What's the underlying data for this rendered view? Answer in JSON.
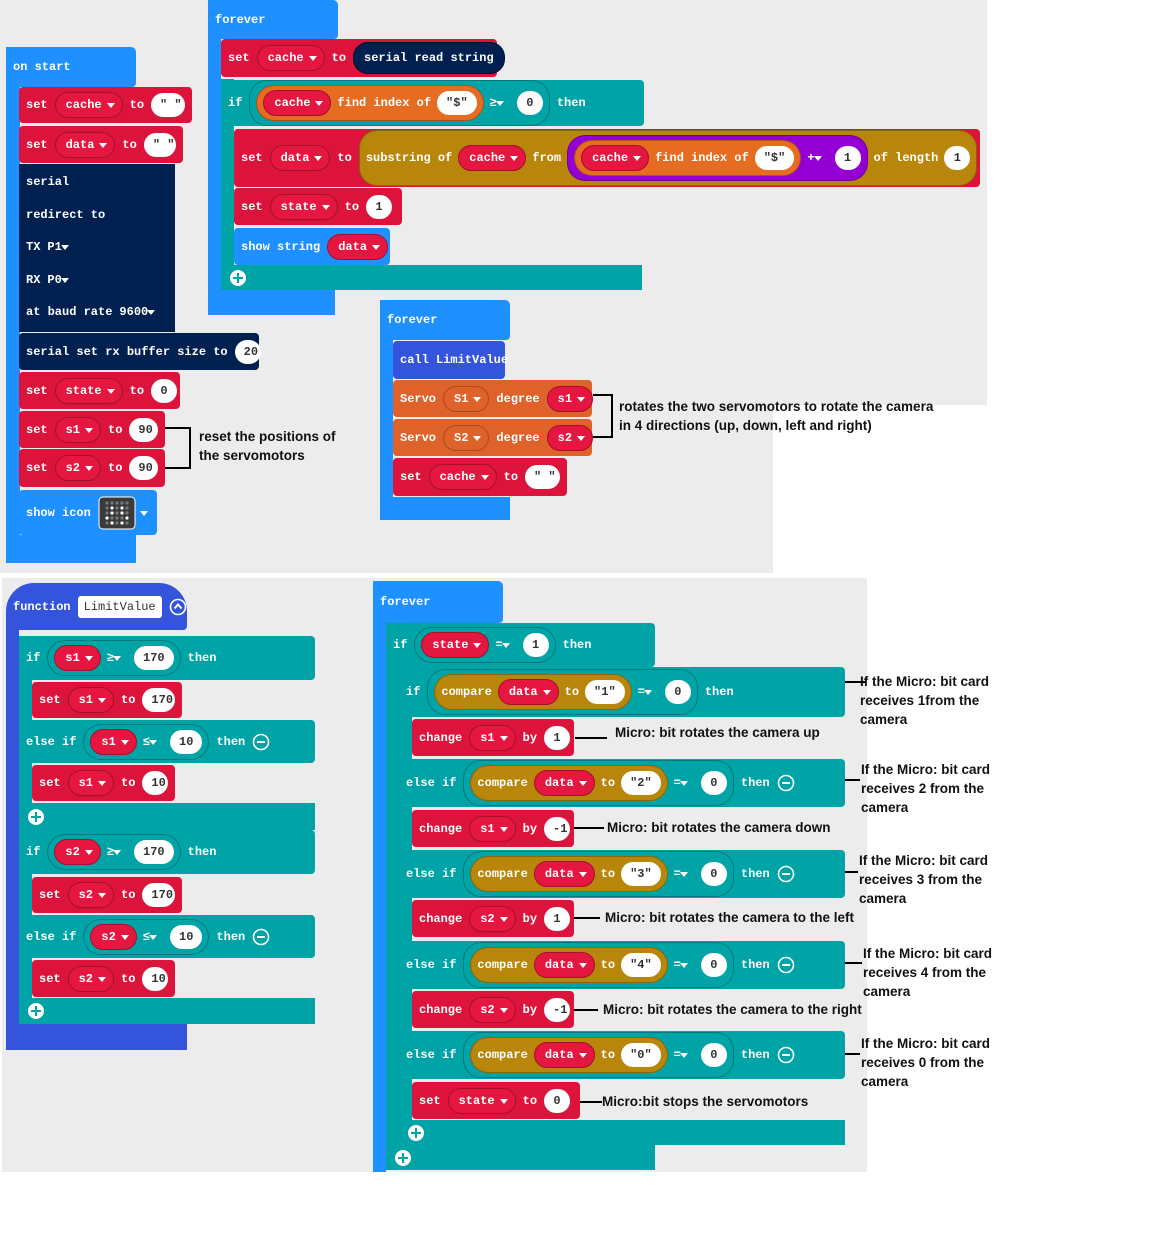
{
  "blocks": {
    "on_start": {
      "rows": [
        [
          "on start"
        ],
        [
          "set",
          "cache",
          "to",
          "\" \""
        ],
        [
          "set",
          "data",
          "to",
          "\" \""
        ],
        [
          "serial"
        ],
        [
          "redirect to"
        ],
        [
          "TX",
          "P1"
        ],
        [
          "RX",
          "P0"
        ],
        [
          "at baud rate",
          "9600"
        ],
        [
          "serial set rx buffer size to",
          "20"
        ],
        [
          "set",
          "state",
          "to",
          "0"
        ],
        [
          "set",
          "s1",
          "to",
          "90"
        ],
        [
          "set",
          "s2",
          "to",
          "90"
        ],
        [
          "show icon"
        ]
      ]
    },
    "forever_1": {
      "rows": [
        [
          "forever"
        ],
        [
          "set",
          "cache",
          "to",
          "serial read string"
        ],
        [
          "if",
          [
            [
              "cache",
              "find index of",
              "\"$\""
            ],
            "≥",
            "0"
          ],
          "then"
        ],
        [
          "set",
          "data",
          "to",
          [
            "substring of",
            "cache",
            "from",
            [
              [
                "cache",
                "find index of",
                "\"$\""
              ],
              "+",
              "1"
            ],
            "of length",
            "1"
          ]
        ],
        [
          "set",
          "state",
          "to",
          "1"
        ],
        [
          "show string",
          "data"
        ]
      ]
    },
    "forever_2": {
      "rows": [
        [
          "forever"
        ],
        [
          "call LimitValue"
        ],
        [
          "Servo",
          "S1",
          "degree",
          "s1"
        ],
        [
          "Servo",
          "S2",
          "degree",
          "s2"
        ],
        [
          "set",
          "cache",
          "to",
          "\" \""
        ]
      ]
    },
    "function": {
      "rows": [
        [
          "function",
          "LimitValue"
        ],
        [
          "if",
          [
            "s1",
            "≥",
            "170"
          ],
          "then"
        ],
        [
          "set",
          "s1",
          "to",
          "170"
        ],
        [
          "else if",
          [
            "s1",
            "≤",
            "10"
          ],
          "then"
        ],
        [
          "set",
          "s1",
          "to",
          "10"
        ],
        [
          "if",
          [
            "s2",
            "≥",
            "170"
          ],
          "then"
        ],
        [
          "set",
          "s2",
          "to",
          "170"
        ],
        [
          "else if",
          [
            "s2",
            "≤",
            "10"
          ],
          "then"
        ],
        [
          "set",
          "s2",
          "to",
          "10"
        ]
      ]
    },
    "forever_3": {
      "rows": [
        [
          "forever"
        ],
        [
          "if",
          [
            "state",
            "=",
            "1"
          ],
          "then"
        ],
        [
          "if",
          [
            [
              "compare",
              "data",
              "to",
              "\"1\""
            ],
            "=",
            "0"
          ],
          "then"
        ],
        [
          "change",
          "s1",
          "by",
          "1"
        ],
        [
          "else if",
          [
            [
              "compare",
              "data",
              "to",
              "\"2\""
            ],
            "=",
            "0"
          ],
          "then"
        ],
        [
          "change",
          "s1",
          "by",
          "-1"
        ],
        [
          "else if",
          [
            [
              "compare",
              "data",
              "to",
              "\"3\""
            ],
            "=",
            "0"
          ],
          "then"
        ],
        [
          "change",
          "s2",
          "by",
          "1"
        ],
        [
          "else if",
          [
            [
              "compare",
              "data",
              "to",
              "\"4\""
            ],
            "=",
            "0"
          ],
          "then"
        ],
        [
          "change",
          "s2",
          "by",
          "-1"
        ],
        [
          "else if",
          [
            [
              "compare",
              "data",
              "to",
              "\"0\""
            ],
            "=",
            "0"
          ],
          "then"
        ],
        [
          "set",
          "state",
          "to",
          "0"
        ]
      ]
    }
  },
  "notes": [
    "reset the positions of",
    "the servomotors",
    "rotates the two servomotors to rotate the camera",
    "in 4 directions (up, down, left and right)",
    "If the Micro: bit card",
    "receives 1from the",
    "camera",
    "Micro: bit rotates the camera up",
    "If the Micro: bit card",
    "receives 2 from the",
    "camera",
    "Micro: bit rotates the camera down",
    "If the Micro: bit card",
    "receives 3 from the",
    "camera",
    "Micro: bit rotates the camera to the left",
    "If the Micro: bit card",
    "receives 4 from the",
    "camera",
    "Micro: bit rotates the camera to the right",
    "If the Micro: bit card",
    "receives 0 from the",
    "camera",
    "Micro:bit stops the servomotors"
  ]
}
